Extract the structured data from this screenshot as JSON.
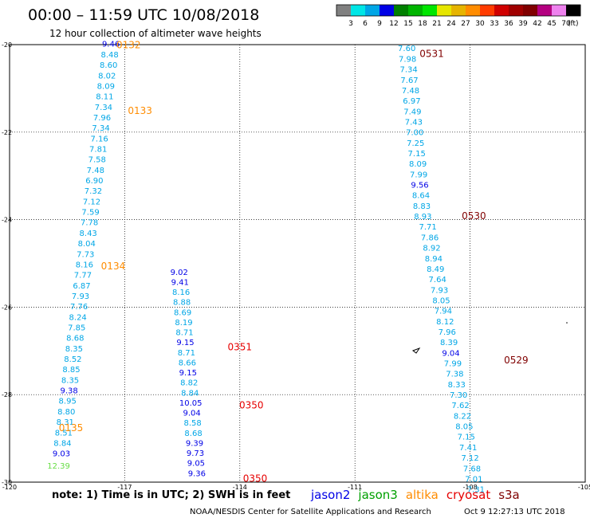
{
  "header": {
    "title": "00:00 – 11:59 UTC 10/08/2018",
    "subtitle": "12 hour collection of altimeter wave heights"
  },
  "colorbar": {
    "unit": "(ft)",
    "ticks": [
      "3",
      "6",
      "9",
      "12",
      "15",
      "18",
      "21",
      "24",
      "27",
      "30",
      "33",
      "36",
      "39",
      "42",
      "45",
      "70"
    ],
    "colors": [
      "#808080",
      "#00e6e6",
      "#00a6e6",
      "#0000e6",
      "#008000",
      "#00b400",
      "#00e600",
      "#e6e600",
      "#e6b400",
      "#ff8c00",
      "#ff3c00",
      "#d00000",
      "#a00000",
      "#800000",
      "#b40080",
      "#ee82ee",
      "#000000"
    ]
  },
  "footer": {
    "note": "note: 1) Time is in UTC; 2) SWH is in feet",
    "credit": "NOAA/NESDIS Center for Satellite Applications and Research",
    "timestamp": "Oct  9 12:27:13 UTC 2018",
    "legend": [
      {
        "label": "jason2",
        "color": "#0000e6"
      },
      {
        "label": "jason3",
        "color": "#00a000"
      },
      {
        "label": "altika",
        "color": "#ff8c00"
      },
      {
        "label": "cryosat",
        "color": "#e60000"
      },
      {
        "label": "s3a",
        "color": "#800000"
      }
    ]
  },
  "chart_data": {
    "type": "scatter",
    "xlim": [
      -120,
      -105
    ],
    "ylim": [
      -30,
      -20
    ],
    "x_ticks": [
      -120,
      -117,
      -114,
      -111,
      -108,
      -105
    ],
    "x_tick_labels": [
      "-120",
      "-117",
      "-114",
      "-111",
      "-108",
      "-105"
    ],
    "y_ticks": [
      -20,
      -22,
      -24,
      -26,
      -28,
      -30
    ],
    "y_tick_labels": [
      "-20",
      "-22",
      "-24",
      "-26",
      "-28",
      "-30"
    ],
    "grid": true,
    "tracks": [
      {
        "color": "#00a6e6",
        "points": [
          {
            "x": -117.36,
            "y": -20.05,
            "v": "9.46",
            "c": "#0000e6"
          },
          {
            "x": -117.39,
            "y": -20.29,
            "v": "8.48"
          },
          {
            "x": -117.42,
            "y": -20.53,
            "v": "8.60"
          },
          {
            "x": -117.46,
            "y": -20.77,
            "v": "8.02"
          },
          {
            "x": -117.49,
            "y": -21.01,
            "v": "8.09"
          },
          {
            "x": -117.52,
            "y": -21.25,
            "v": "8.11"
          },
          {
            "x": -117.55,
            "y": -21.49,
            "v": "7.34"
          },
          {
            "x": -117.59,
            "y": -21.73,
            "v": "7.96"
          },
          {
            "x": -117.62,
            "y": -21.97,
            "v": "7.34"
          },
          {
            "x": -117.66,
            "y": -22.21,
            "v": "7.16"
          },
          {
            "x": -117.69,
            "y": -22.45,
            "v": "7.81"
          },
          {
            "x": -117.72,
            "y": -22.69,
            "v": "7.58"
          },
          {
            "x": -117.76,
            "y": -22.93,
            "v": "7.48"
          },
          {
            "x": -117.79,
            "y": -23.17,
            "v": "6.90"
          },
          {
            "x": -117.82,
            "y": -23.41,
            "v": "7.32"
          },
          {
            "x": -117.86,
            "y": -23.65,
            "v": "7.12"
          },
          {
            "x": -117.89,
            "y": -23.89,
            "v": "7.59"
          },
          {
            "x": -117.92,
            "y": -24.13,
            "v": "7.78"
          },
          {
            "x": -117.95,
            "y": -24.37,
            "v": "8.43"
          },
          {
            "x": -117.99,
            "y": -24.61,
            "v": "8.04"
          },
          {
            "x": -118.02,
            "y": -24.85,
            "v": "7.73"
          },
          {
            "x": -118.05,
            "y": -25.09,
            "v": "8.16"
          },
          {
            "x": -118.09,
            "y": -25.33,
            "v": "7.77"
          },
          {
            "x": -118.12,
            "y": -25.57,
            "v": "6.87"
          },
          {
            "x": -118.15,
            "y": -25.81,
            "v": "7.93"
          },
          {
            "x": -118.19,
            "y": -26.05,
            "v": "7.76"
          },
          {
            "x": -118.22,
            "y": -26.29,
            "v": "8.24"
          },
          {
            "x": -118.25,
            "y": -26.53,
            "v": "7.85"
          },
          {
            "x": -118.29,
            "y": -26.77,
            "v": "8.68"
          },
          {
            "x": -118.32,
            "y": -27.01,
            "v": "8.35"
          },
          {
            "x": -118.35,
            "y": -27.25,
            "v": "8.52"
          },
          {
            "x": -118.39,
            "y": -27.49,
            "v": "8.85"
          },
          {
            "x": -118.42,
            "y": -27.73,
            "v": "8.35"
          },
          {
            "x": -118.45,
            "y": -27.97,
            "v": "9.38",
            "c": "#0000e6"
          },
          {
            "x": -118.49,
            "y": -28.21,
            "v": "8.95"
          },
          {
            "x": -118.52,
            "y": -28.45,
            "v": "8.80"
          },
          {
            "x": -118.55,
            "y": -28.69,
            "v": "8.31"
          },
          {
            "x": -118.59,
            "y": -28.93,
            "v": "8.51"
          },
          {
            "x": -118.62,
            "y": -29.17,
            "v": "8.84"
          },
          {
            "x": -118.65,
            "y": -29.41,
            "v": "9.03",
            "c": "#0000e6"
          },
          {
            "x": -118.72,
            "y": -29.69,
            "v": "12.39",
            "c": "#66dd44"
          }
        ]
      },
      {
        "color": "#00a6e6",
        "points": [
          {
            "x": -115.58,
            "y": -25.26,
            "v": "9.02",
            "c": "#0000e6"
          },
          {
            "x": -115.56,
            "y": -25.49,
            "v": "9.41",
            "c": "#0000e6"
          },
          {
            "x": -115.53,
            "y": -25.72,
            "v": "8.16"
          },
          {
            "x": -115.51,
            "y": -25.95,
            "v": "8.88"
          },
          {
            "x": -115.49,
            "y": -26.18,
            "v": "8.69"
          },
          {
            "x": -115.46,
            "y": -26.41,
            "v": "8.19"
          },
          {
            "x": -115.44,
            "y": -26.64,
            "v": "8.71"
          },
          {
            "x": -115.42,
            "y": -26.87,
            "v": "9.15",
            "c": "#0000e6"
          },
          {
            "x": -115.39,
            "y": -27.1,
            "v": "8.71"
          },
          {
            "x": -115.37,
            "y": -27.33,
            "v": "8.66"
          },
          {
            "x": -115.35,
            "y": -27.56,
            "v": "9.15",
            "c": "#0000e6"
          },
          {
            "x": -115.32,
            "y": -27.79,
            "v": "8.82"
          },
          {
            "x": -115.3,
            "y": -28.02,
            "v": "8.84"
          },
          {
            "x": -115.28,
            "y": -28.25,
            "v": "10.05",
            "c": "#0000e6"
          },
          {
            "x": -115.25,
            "y": -28.48,
            "v": "9.04",
            "c": "#0000e6"
          },
          {
            "x": -115.23,
            "y": -28.71,
            "v": "8.58"
          },
          {
            "x": -115.21,
            "y": -28.94,
            "v": "8.68"
          },
          {
            "x": -115.18,
            "y": -29.17,
            "v": "9.39",
            "c": "#0000e6"
          },
          {
            "x": -115.16,
            "y": -29.4,
            "v": "9.73",
            "c": "#0000e6"
          },
          {
            "x": -115.14,
            "y": -29.63,
            "v": "9.05",
            "c": "#0000e6"
          },
          {
            "x": -115.12,
            "y": -29.86,
            "v": "9.36",
            "c": "#0000e6"
          }
        ]
      },
      {
        "color": "#00a6e6",
        "points": [
          {
            "x": -109.65,
            "y": -20.15,
            "v": "7.60"
          },
          {
            "x": -109.63,
            "y": -20.39,
            "v": "7.98"
          },
          {
            "x": -109.6,
            "y": -20.63,
            "v": "7.34"
          },
          {
            "x": -109.58,
            "y": -20.87,
            "v": "7.67"
          },
          {
            "x": -109.55,
            "y": -21.11,
            "v": "7.48"
          },
          {
            "x": -109.52,
            "y": -21.35,
            "v": "6.97"
          },
          {
            "x": -109.5,
            "y": -21.59,
            "v": "7.49"
          },
          {
            "x": -109.47,
            "y": -21.83,
            "v": "7.43"
          },
          {
            "x": -109.44,
            "y": -22.07,
            "v": "7.00"
          },
          {
            "x": -109.42,
            "y": -22.31,
            "v": "7.25"
          },
          {
            "x": -109.39,
            "y": -22.55,
            "v": "7.15"
          },
          {
            "x": -109.36,
            "y": -22.79,
            "v": "8.09"
          },
          {
            "x": -109.34,
            "y": -23.03,
            "v": "7.99"
          },
          {
            "x": -109.31,
            "y": -23.27,
            "v": "9.56",
            "c": "#0000e6"
          },
          {
            "x": -109.28,
            "y": -23.51,
            "v": "8.64"
          },
          {
            "x": -109.26,
            "y": -23.75,
            "v": "8.83"
          },
          {
            "x": -109.23,
            "y": -23.99,
            "v": "8.93"
          },
          {
            "x": -109.1,
            "y": -24.23,
            "v": "7.71"
          },
          {
            "x": -109.05,
            "y": -24.47,
            "v": "7.86"
          },
          {
            "x": -109.0,
            "y": -24.71,
            "v": "8.92"
          },
          {
            "x": -108.95,
            "y": -24.95,
            "v": "8.94"
          },
          {
            "x": -108.9,
            "y": -25.19,
            "v": "8.49"
          },
          {
            "x": -108.85,
            "y": -25.43,
            "v": "7.64"
          },
          {
            "x": -108.8,
            "y": -25.67,
            "v": "7.93"
          },
          {
            "x": -108.75,
            "y": -25.91,
            "v": "8.05"
          },
          {
            "x": -108.7,
            "y": -26.15,
            "v": "7.94"
          },
          {
            "x": -108.65,
            "y": -26.39,
            "v": "8.12"
          },
          {
            "x": -108.6,
            "y": -26.63,
            "v": "7.96"
          },
          {
            "x": -108.55,
            "y": -26.87,
            "v": "8.39"
          },
          {
            "x": -108.5,
            "y": -27.11,
            "v": "9.04",
            "c": "#0000e6"
          },
          {
            "x": -108.45,
            "y": -27.35,
            "v": "7.99"
          },
          {
            "x": -108.4,
            "y": -27.59,
            "v": "7.38"
          },
          {
            "x": -108.35,
            "y": -27.83,
            "v": "8.33"
          },
          {
            "x": -108.3,
            "y": -28.07,
            "v": "7.30"
          },
          {
            "x": -108.25,
            "y": -28.31,
            "v": "7.62"
          },
          {
            "x": -108.2,
            "y": -28.55,
            "v": "8.22"
          },
          {
            "x": -108.15,
            "y": -28.79,
            "v": "8.05"
          },
          {
            "x": -108.1,
            "y": -29.03,
            "v": "7.15"
          },
          {
            "x": -108.05,
            "y": -29.27,
            "v": "7.41"
          },
          {
            "x": -108.0,
            "y": -29.51,
            "v": "7.12"
          },
          {
            "x": -107.95,
            "y": -29.75,
            "v": "7.68"
          },
          {
            "x": -107.9,
            "y": -29.99,
            "v": "7.01"
          },
          {
            "x": -107.85,
            "y": -30.23,
            "v": "7.31"
          }
        ]
      }
    ],
    "time_labels": [
      {
        "x": -116.9,
        "y": -20.05,
        "text": "0132",
        "color": "#ff8c00"
      },
      {
        "x": -116.6,
        "y": -21.55,
        "text": "0133",
        "color": "#ff8c00"
      },
      {
        "x": -117.3,
        "y": -25.1,
        "text": "0134",
        "color": "#ff8c00"
      },
      {
        "x": -118.4,
        "y": -28.8,
        "text": "0135",
        "color": "#ff8c00"
      },
      {
        "x": -114.0,
        "y": -26.95,
        "text": "0351",
        "color": "#e60000"
      },
      {
        "x": -113.7,
        "y": -28.28,
        "text": "0350",
        "color": "#e60000"
      },
      {
        "x": -113.6,
        "y": -29.95,
        "text": "0350",
        "color": "#e60000"
      },
      {
        "x": -109.0,
        "y": -20.25,
        "text": "0531",
        "color": "#800000"
      },
      {
        "x": -107.9,
        "y": -23.95,
        "text": "0530",
        "color": "#800000"
      },
      {
        "x": -106.8,
        "y": -27.25,
        "text": "0529",
        "color": "#800000"
      }
    ]
  }
}
